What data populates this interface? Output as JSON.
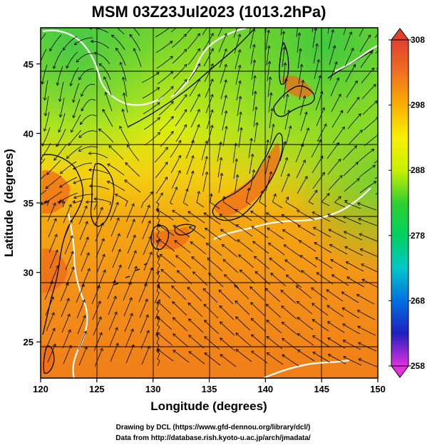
{
  "title": "MSM 03Z23Jul2023 (1013.2hPa)",
  "map": {
    "xlabel": "Longitude (degrees)",
    "ylabel": "Latitude  (degrees)",
    "xlim": [
      120,
      150
    ],
    "ylim": [
      22.4,
      47.6
    ],
    "x_ticks": [
      120,
      125,
      130,
      135,
      140,
      145,
      150
    ],
    "y_ticks": [
      25,
      30,
      35,
      40,
      45
    ],
    "grid": true
  },
  "colorbar": {
    "min": 258,
    "max": 308,
    "ticks": [
      258,
      268,
      278,
      288,
      298,
      308
    ],
    "colors": [
      "#e030e0",
      "#2020c0",
      "#0070e0",
      "#00c8c8",
      "#00d060",
      "#30d030",
      "#c8f000",
      "#f8f000",
      "#f8b000",
      "#f07020",
      "#e04030"
    ]
  },
  "credits": {
    "line1": "Drawing by DCL (https://www.gfd-dennou.org/library/dcl/)",
    "line2": "Data from http://database.rish.kyoto-u.ac.jp/arch/jmadata/"
  }
}
